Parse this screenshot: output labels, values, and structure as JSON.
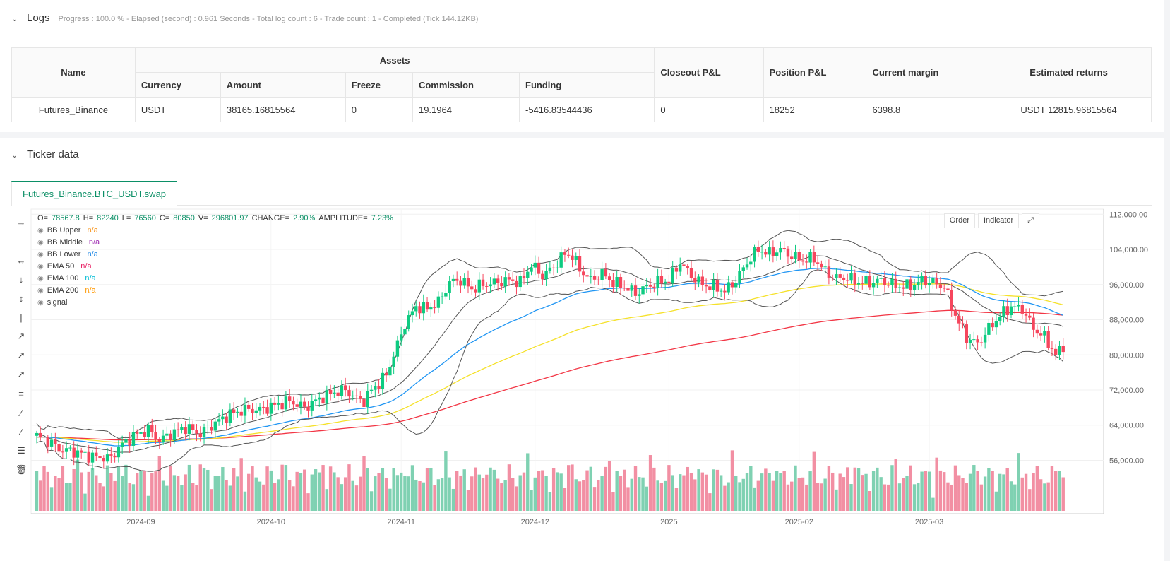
{
  "logs": {
    "title": "Logs",
    "info": "Progress : 100.0 % - Elapsed (second) : 0.961  Seconds - Total log count : 6 - Trade count : 1 - Completed (Tick 144.12KB)"
  },
  "table": {
    "name_header": "Name",
    "assets_header": "Assets",
    "sub_headers": [
      "Currency",
      "Amount",
      "Freeze",
      "Commission",
      "Funding"
    ],
    "closeout_header": "Closeout P&L",
    "position_header": "Position P&L",
    "margin_header": "Current margin",
    "returns_header": "Estimated returns",
    "row": {
      "name": "Futures_Binance",
      "currency": "USDT",
      "amount": "38165.16815564",
      "freeze": "0",
      "commission": "19.1964",
      "funding": "-5416.83544436",
      "closeout": "0",
      "position": "18252",
      "margin": "6398.8",
      "returns": "USDT 12815.96815564"
    }
  },
  "ticker": {
    "title": "Ticker data",
    "tab": "Futures_Binance.BTC_USDT.swap",
    "order_btn": "Order",
    "indicator_btn": "Indicator"
  },
  "legend": {
    "ohlc": {
      "o_label": "O=",
      "o": "78567.8",
      "h_label": "H=",
      "h": "82240",
      "l_label": "L=",
      "l": "76560",
      "c_label": "C=",
      "c": "80850",
      "v_label": "V=",
      "v": "296801.97",
      "chg_label": "CHANGE=",
      "chg": "2.90%",
      "amp_label": "AMPLITUDE=",
      "amp": "7.23%"
    },
    "items": [
      {
        "name": "BB Upper",
        "value": "n/a",
        "color": "#f7931a"
      },
      {
        "name": "BB Middle",
        "value": "n/a",
        "color": "#9c27b0"
      },
      {
        "name": "BB Lower",
        "value": "n/a",
        "color": "#1e88e5"
      },
      {
        "name": "EMA 50",
        "value": "n/a",
        "color": "#e91e63"
      },
      {
        "name": "EMA 100",
        "value": "n/a",
        "color": "#00bcd4"
      },
      {
        "name": "EMA 200",
        "value": "n/a",
        "color": "#ff9800"
      },
      {
        "name": "signal",
        "value": "",
        "color": "#888888"
      }
    ]
  },
  "chart_data": {
    "type": "candlestick",
    "symbol": "Futures_Binance.BTC_USDT.swap",
    "x_ticks": [
      "2024-09",
      "2024-10",
      "2024-11",
      "2024-12",
      "2025",
      "2025-02",
      "2025-03"
    ],
    "y_ticks": [
      "56,000.00",
      "64,000.00",
      "72,000.00",
      "80,000.00",
      "88,000.00",
      "96,000.00",
      "104,000.00",
      "112,000.00"
    ],
    "y_range": [
      49000,
      118000
    ],
    "close_path": [
      [
        0,
        61500
      ],
      [
        3,
        60500
      ],
      [
        6,
        58500
      ],
      [
        10,
        58000
      ],
      [
        15,
        56800
      ],
      [
        20,
        56500
      ],
      [
        22,
        59000
      ],
      [
        26,
        61500
      ],
      [
        30,
        63000
      ],
      [
        33,
        60500
      ],
      [
        36,
        62000
      ],
      [
        40,
        63500
      ],
      [
        44,
        62000
      ],
      [
        48,
        64500
      ],
      [
        52,
        66500
      ],
      [
        56,
        67500
      ],
      [
        60,
        67500
      ],
      [
        64,
        68500
      ],
      [
        68,
        69500
      ],
      [
        72,
        68000
      ],
      [
        76,
        70000
      ],
      [
        80,
        71500
      ],
      [
        83,
        72000
      ],
      [
        86,
        70000
      ],
      [
        88,
        69500
      ],
      [
        90,
        72000
      ],
      [
        92,
        73500
      ],
      [
        94,
        75500
      ],
      [
        96,
        80000
      ],
      [
        99,
        87000
      ],
      [
        102,
        91000
      ],
      [
        105,
        90500
      ],
      [
        108,
        92000
      ],
      [
        111,
        96500
      ],
      [
        114,
        97000
      ],
      [
        117,
        95000
      ],
      [
        120,
        96000
      ],
      [
        124,
        96500
      ],
      [
        127,
        97000
      ],
      [
        130,
        96500
      ],
      [
        133,
        100500
      ],
      [
        136,
        98000
      ],
      [
        139,
        100000
      ],
      [
        142,
        103000
      ],
      [
        144,
        102500
      ],
      [
        146,
        99500
      ],
      [
        149,
        97000
      ],
      [
        152,
        98500
      ],
      [
        155,
        96500
      ],
      [
        158,
        95500
      ],
      [
        161,
        94000
      ],
      [
        164,
        95500
      ],
      [
        167,
        96500
      ],
      [
        170,
        97000
      ],
      [
        173,
        101000
      ],
      [
        176,
        98000
      ],
      [
        179,
        96000
      ],
      [
        182,
        95500
      ],
      [
        185,
        94500
      ],
      [
        188,
        97000
      ],
      [
        191,
        101000
      ],
      [
        194,
        104000
      ],
      [
        197,
        103000
      ],
      [
        200,
        104000
      ],
      [
        203,
        102500
      ],
      [
        206,
        101500
      ],
      [
        209,
        102000
      ],
      [
        212,
        99000
      ],
      [
        215,
        97500
      ],
      [
        218,
        97500
      ],
      [
        221,
        96500
      ],
      [
        224,
        96500
      ],
      [
        227,
        97000
      ],
      [
        230,
        96000
      ],
      [
        233,
        95500
      ],
      [
        236,
        96000
      ],
      [
        238,
        97000
      ],
      [
        241,
        96500
      ],
      [
        244,
        95500
      ],
      [
        247,
        89000
      ],
      [
        250,
        84000
      ],
      [
        253,
        82500
      ],
      [
        256,
        86000
      ],
      [
        259,
        89000
      ],
      [
        262,
        91000
      ],
      [
        265,
        90500
      ],
      [
        268,
        86000
      ],
      [
        271,
        84000
      ],
      [
        274,
        80000
      ],
      [
        276,
        82000
      ]
    ],
    "volume_range": [
      0,
      290000
    ]
  }
}
